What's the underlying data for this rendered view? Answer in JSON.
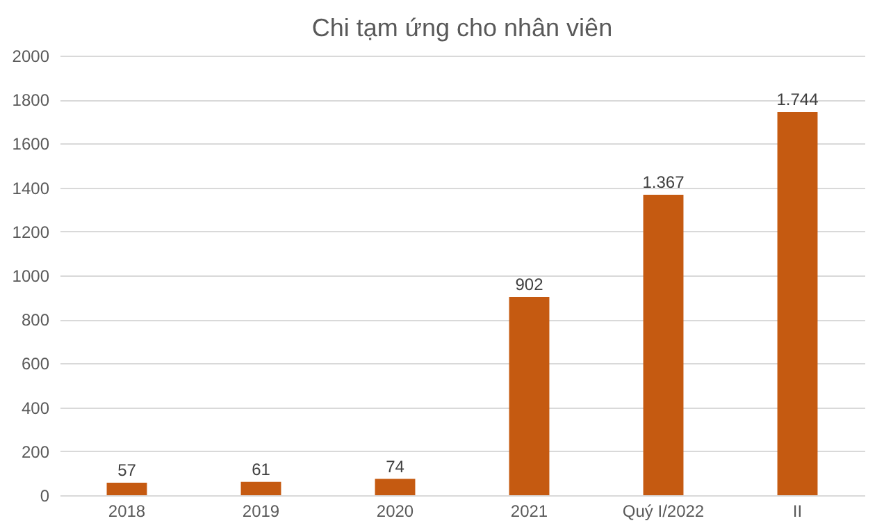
{
  "chart_data": {
    "type": "bar",
    "title": "Chi tạm ứng cho nhân viên",
    "categories": [
      "2018",
      "2019",
      "2020",
      "2021",
      "Quý I/2022",
      "II"
    ],
    "values": [
      57,
      61,
      74,
      902,
      1367,
      1744
    ],
    "value_labels": [
      "57",
      "61",
      "74",
      "902",
      "1.367",
      "1.744"
    ],
    "color": "#c55a11",
    "ylim": [
      0,
      2000
    ],
    "yticks": [
      0,
      200,
      400,
      600,
      800,
      1000,
      1200,
      1400,
      1600,
      1800,
      2000
    ],
    "grid": "y"
  }
}
